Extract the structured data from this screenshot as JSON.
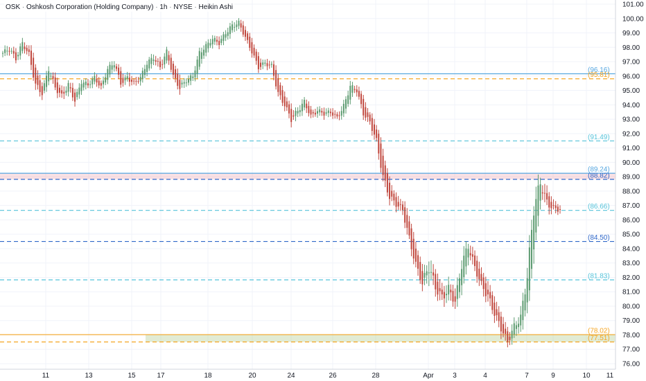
{
  "header": {
    "ticker": "OSK",
    "company": "Oshkosh Corporation (Holding Company)",
    "interval": "1h",
    "exchange": "NYSE",
    "chart_style": "Heikin Ashi",
    "separator": "·"
  },
  "colors": {
    "up": "#5b9a6f",
    "down": "#c0463c",
    "grid": "#f0f3fa",
    "axis_text": "#131722",
    "level_blue": "#55c3da",
    "level_dark_blue": "#2e67c9",
    "level_orange": "#f5a623",
    "band_blue": "#9ec0e8",
    "zone_red": "rgba(231,120,130,0.22)",
    "zone_green": "rgba(181,206,147,0.40)"
  },
  "chart_data": {
    "type": "candlestick",
    "title": "OSK · Oshkosh Corporation (Holding Company) · 1h · NYSE · Heikin Ashi",
    "ylim": [
      75.6,
      101.4
    ],
    "y_ticks": [
      "101.00",
      "100.00",
      "99.00",
      "98.00",
      "97.00",
      "96.00",
      "95.00",
      "94.00",
      "93.00",
      "92.00",
      "91.00",
      "90.00",
      "89.00",
      "88.00",
      "87.00",
      "86.00",
      "85.00",
      "84.00",
      "83.00",
      "82.00",
      "81.00",
      "80.00",
      "79.00",
      "78.00",
      "77.00",
      "76.00"
    ],
    "x_ticks": [
      "11",
      "13",
      "15",
      "17",
      "18",
      "20",
      "24",
      "26",
      "28",
      "Apr",
      "3",
      "4",
      "7",
      "9",
      "10",
      "11"
    ],
    "grid": true,
    "levels": [
      {
        "value": 96.16,
        "label": "(96.16)",
        "color": "#55a6e0",
        "style": "solid"
      },
      {
        "value": 95.81,
        "label": "(95.81)",
        "color": "#f5a623",
        "style": "dashed"
      },
      {
        "value": 91.49,
        "label": "(91.49)",
        "color": "#55c3da",
        "style": "dashed"
      },
      {
        "value": 89.24,
        "label": "(89.24)",
        "color": "#55a6e0",
        "style": "solid"
      },
      {
        "value": 88.82,
        "label": "(88.82)",
        "color": "#2e67c9",
        "style": "dashed"
      },
      {
        "value": 86.66,
        "label": "(86.66)",
        "color": "#55c3da",
        "style": "dashed"
      },
      {
        "value": 84.5,
        "label": "(84.50)",
        "color": "#2e67c9",
        "style": "dashed"
      },
      {
        "value": 81.83,
        "label": "(81.83)",
        "color": "#55c3da",
        "style": "dashed"
      },
      {
        "value": 78.02,
        "label": "(78.02)",
        "color": "#f5a623",
        "style": "solid"
      },
      {
        "value": 77.51,
        "label": "(77.51)",
        "color": "#f5a623",
        "style": "dashed"
      }
    ],
    "zones": [
      {
        "from": 88.82,
        "to": 89.24,
        "color": "rgba(231,120,130,0.22)"
      },
      {
        "from": 77.51,
        "to": 78.02,
        "color": "rgba(181,206,147,0.40)"
      }
    ],
    "anchors": [
      [
        97.6,
        0.6
      ],
      [
        97.9,
        0.7
      ],
      [
        97.2,
        0.6
      ],
      [
        98.3,
        0.6
      ],
      [
        97.5,
        0.7
      ],
      [
        95.4,
        0.9
      ],
      [
        94.8,
        0.7
      ],
      [
        96.5,
        0.7
      ],
      [
        95.2,
        0.7
      ],
      [
        94.6,
        0.8
      ],
      [
        95.4,
        0.7
      ],
      [
        94.3,
        0.7
      ],
      [
        95.6,
        0.6
      ],
      [
        95.4,
        0.6
      ],
      [
        95.9,
        0.6
      ],
      [
        95.2,
        0.6
      ],
      [
        96.5,
        0.6
      ],
      [
        96.9,
        0.6
      ],
      [
        95.5,
        0.6
      ],
      [
        95.9,
        0.7
      ],
      [
        95.5,
        0.6
      ],
      [
        95.9,
        0.6
      ],
      [
        96.9,
        0.6
      ],
      [
        97.3,
        0.7
      ],
      [
        96.6,
        0.7
      ],
      [
        97.7,
        0.6
      ],
      [
        96.0,
        0.6
      ],
      [
        95.2,
        0.8
      ],
      [
        95.7,
        0.6
      ],
      [
        96.0,
        0.6
      ],
      [
        97.6,
        0.7
      ],
      [
        98.1,
        0.6
      ],
      [
        98.6,
        0.6
      ],
      [
        98.3,
        0.6
      ],
      [
        99.0,
        0.6
      ],
      [
        99.5,
        0.7
      ],
      [
        99.7,
        0.6
      ],
      [
        98.7,
        0.6
      ],
      [
        97.7,
        0.6
      ],
      [
        96.6,
        0.6
      ],
      [
        96.9,
        0.6
      ],
      [
        96.7,
        0.6
      ],
      [
        94.8,
        0.7
      ],
      [
        94.0,
        0.7
      ],
      [
        93.0,
        0.8
      ],
      [
        93.6,
        0.7
      ],
      [
        94.2,
        0.7
      ],
      [
        93.2,
        0.6
      ],
      [
        93.6,
        0.6
      ],
      [
        93.4,
        0.6
      ],
      [
        93.5,
        0.6
      ],
      [
        93.1,
        0.6
      ],
      [
        93.9,
        0.7
      ],
      [
        95.3,
        0.7
      ],
      [
        95.0,
        0.6
      ],
      [
        93.4,
        0.7
      ],
      [
        92.8,
        0.7
      ],
      [
        91.5,
        0.8
      ],
      [
        89.0,
        1.0
      ],
      [
        87.6,
        0.9
      ],
      [
        87.1,
        0.8
      ],
      [
        86.7,
        0.9
      ],
      [
        84.7,
        1.0
      ],
      [
        82.9,
        1.0
      ],
      [
        81.6,
        1.0
      ],
      [
        82.8,
        1.8
      ],
      [
        81.3,
        1.2
      ],
      [
        80.6,
        1.3
      ],
      [
        81.2,
        1.2
      ],
      [
        80.3,
        1.1
      ],
      [
        82.9,
        1.4
      ],
      [
        84.2,
        1.2
      ],
      [
        82.7,
        1.0
      ],
      [
        81.5,
        1.0
      ],
      [
        80.7,
        1.2
      ],
      [
        79.5,
        1.0
      ],
      [
        78.5,
        1.1
      ],
      [
        77.5,
        0.9
      ],
      [
        78.6,
        0.9
      ],
      [
        79.2,
        1.2
      ],
      [
        82.1,
        1.6
      ],
      [
        86.8,
        2.0
      ],
      [
        88.6,
        1.4
      ],
      [
        87.2,
        1.2
      ],
      [
        86.8,
        0.8
      ],
      [
        86.7,
        0.6
      ]
    ]
  }
}
